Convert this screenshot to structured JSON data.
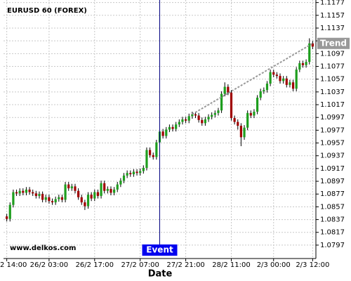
{
  "chart_data": {
    "type": "candlestick",
    "title": "EURUSD 60 (FOREX)",
    "watermark": "www.delkos.com",
    "xlabel": "Date",
    "up_color": "#1e9e1e",
    "down_color": "#a00000",
    "open": [
      1.0842,
      1.0838,
      1.086,
      1.088,
      1.0878,
      1.0882,
      1.0879,
      1.0884,
      1.088,
      1.0878,
      1.0874,
      1.0877,
      1.0868,
      1.0872,
      1.0866,
      1.0864,
      1.0869,
      1.0872,
      1.0868,
      1.0892,
      1.0886,
      1.0889,
      1.0882,
      1.0872,
      1.0864,
      1.0858,
      1.0876,
      1.087,
      1.088,
      1.0874,
      1.0894,
      1.0882,
      1.0885,
      1.0879,
      1.0884,
      1.0892,
      1.0898,
      1.0906,
      1.091,
      1.0908,
      1.0912,
      1.091,
      1.0913,
      1.0918,
      1.0946,
      1.0938,
      1.0935,
      1.0958,
      1.0975,
      1.0968,
      1.0978,
      1.0982,
      1.0979,
      1.0986,
      1.099,
      1.0994,
      1.0992,
      1.0999,
      1.1002,
      1.1,
      1.0993,
      1.0988,
      1.0994,
      1.0998,
      1.1001,
      1.1004,
      1.1008,
      1.1034,
      1.1045,
      1.1036,
      1.0996,
      1.099,
      1.0984,
      1.0966,
      1.0981,
      1.1004,
      1.1,
      1.1006,
      1.1028,
      1.1038,
      1.104,
      1.105,
      1.1068,
      1.1064,
      1.1062,
      1.1054,
      1.1058,
      1.1048,
      1.1052,
      1.1042,
      1.1072,
      1.1082,
      1.1079,
      1.1084,
      1.1113
    ],
    "high": [
      1.0846,
      1.0864,
      1.0884,
      1.0884,
      1.0886,
      1.0886,
      1.0888,
      1.0888,
      1.0884,
      1.0882,
      1.0881,
      1.0881,
      1.0876,
      1.0876,
      1.087,
      1.0873,
      1.0876,
      1.0876,
      1.0896,
      1.0896,
      1.0893,
      1.0893,
      1.0886,
      1.0876,
      1.0868,
      1.088,
      1.088,
      1.0884,
      1.0884,
      1.0898,
      1.0898,
      1.0889,
      1.0889,
      1.0888,
      1.0896,
      1.0902,
      1.091,
      1.0914,
      1.0914,
      1.0916,
      1.0916,
      1.0917,
      1.0922,
      1.095,
      1.095,
      1.0942,
      1.0962,
      1.0979,
      1.0979,
      1.0982,
      1.0986,
      1.0986,
      1.099,
      1.0994,
      1.0998,
      1.0998,
      1.1003,
      1.1006,
      1.1006,
      1.1004,
      1.0997,
      1.0998,
      1.1002,
      1.1005,
      1.1008,
      1.1012,
      1.1038,
      1.1052,
      1.1049,
      1.104,
      1.1,
      1.0994,
      1.0988,
      1.0985,
      1.1008,
      1.1008,
      1.101,
      1.1032,
      1.1042,
      1.1044,
      1.1054,
      1.1072,
      1.1072,
      1.1068,
      1.1066,
      1.1062,
      1.1062,
      1.1056,
      1.1056,
      1.1076,
      1.1086,
      1.1086,
      1.1088,
      1.1121,
      1.1117
    ],
    "low": [
      1.0834,
      1.0834,
      1.0856,
      1.0874,
      1.0874,
      1.0875,
      1.0875,
      1.0876,
      1.0874,
      1.087,
      1.087,
      1.0864,
      1.0864,
      1.0862,
      1.086,
      1.086,
      1.0865,
      1.0864,
      1.0864,
      1.0882,
      1.0882,
      1.0878,
      1.0868,
      1.086,
      1.0852,
      1.0854,
      1.0866,
      1.0866,
      1.087,
      1.087,
      1.0878,
      1.0878,
      1.0875,
      1.0875,
      1.088,
      1.0888,
      1.0894,
      1.0902,
      1.0904,
      1.0904,
      1.0906,
      1.0906,
      1.0909,
      1.0914,
      1.0934,
      1.0931,
      1.0931,
      1.0954,
      1.0964,
      1.0964,
      1.0974,
      1.0975,
      1.0975,
      1.0982,
      1.0986,
      1.0988,
      1.0988,
      1.0995,
      1.0996,
      1.0989,
      1.0984,
      1.0984,
      1.099,
      1.0994,
      1.0997,
      1.1,
      1.1004,
      1.103,
      1.1032,
      1.0992,
      1.0986,
      1.0978,
      1.0952,
      1.0962,
      1.0977,
      1.0996,
      1.0996,
      1.1002,
      1.1024,
      1.1034,
      1.1036,
      1.1046,
      1.106,
      1.1058,
      1.105,
      1.105,
      1.1044,
      1.1044,
      1.1038,
      1.1038,
      1.1068,
      1.1075,
      1.1075,
      1.108,
      1.1104
    ],
    "close": [
      1.0838,
      1.086,
      1.088,
      1.0878,
      1.0882,
      1.0879,
      1.0884,
      1.088,
      1.0878,
      1.0874,
      1.0877,
      1.0868,
      1.0872,
      1.0866,
      1.0864,
      1.0869,
      1.0872,
      1.0868,
      1.0892,
      1.0886,
      1.0889,
      1.0882,
      1.0872,
      1.0864,
      1.0858,
      1.0876,
      1.087,
      1.088,
      1.0874,
      1.0894,
      1.0882,
      1.0885,
      1.0879,
      1.0884,
      1.0892,
      1.0898,
      1.0906,
      1.091,
      1.0908,
      1.0912,
      1.091,
      1.0913,
      1.0918,
      1.0946,
      1.0938,
      1.0935,
      1.0958,
      1.0975,
      1.0968,
      1.0978,
      1.0982,
      1.0979,
      1.0986,
      1.099,
      1.0994,
      1.0992,
      1.0999,
      1.1002,
      1.1,
      1.0993,
      1.0988,
      1.0994,
      1.0998,
      1.1001,
      1.1004,
      1.1008,
      1.1034,
      1.1045,
      1.1036,
      1.0996,
      1.099,
      1.0984,
      1.0966,
      1.0981,
      1.1004,
      1.1,
      1.1006,
      1.1028,
      1.1038,
      1.104,
      1.105,
      1.1068,
      1.1064,
      1.1062,
      1.1054,
      1.1058,
      1.1048,
      1.1052,
      1.1042,
      1.1072,
      1.1082,
      1.1079,
      1.1084,
      1.1113,
      1.1108
    ],
    "xlim": [
      -1,
      95
    ],
    "xticks": [
      {
        "value": 0,
        "label": "2 14:00"
      },
      {
        "value": 13,
        "label": "26/2 03:00"
      },
      {
        "value": 27,
        "label": "26/2 17:00"
      },
      {
        "value": 41,
        "label": "27/2 07:00"
      },
      {
        "value": 55,
        "label": "27/2 21:00"
      },
      {
        "value": 69,
        "label": "28/2 11:00"
      },
      {
        "value": 82,
        "label": "2/3 00:00"
      },
      {
        "value": 94,
        "label": "2/3 12:00"
      }
    ],
    "ylim": [
      1.0776,
      1.1181
    ],
    "yticks": [
      1.0797,
      1.0817,
      1.0837,
      1.0857,
      1.0877,
      1.0897,
      1.0917,
      1.0937,
      1.0957,
      1.0977,
      1.0997,
      1.1017,
      1.1037,
      1.1057,
      1.1077,
      1.1097,
      1.1117,
      1.1137,
      1.1157,
      1.1177
    ],
    "grid": true,
    "trend": {
      "label": "Trend",
      "color": "#999999",
      "x": [
        57,
        94
      ],
      "y": [
        1.1002,
        1.1113
      ]
    },
    "event": {
      "label": "Event",
      "color": "#0000ee",
      "x": 47
    }
  }
}
